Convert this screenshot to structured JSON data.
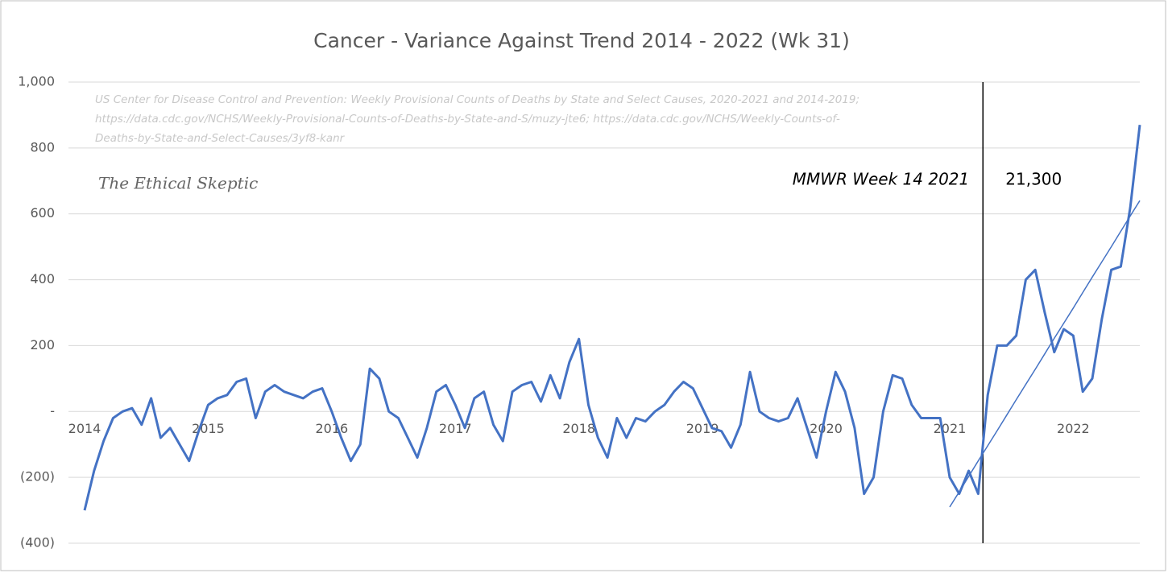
{
  "chart_data": {
    "type": "line",
    "title": "Cancer  - Variance Against Trend  2014 - 2022 (Wk 31)",
    "source": [
      "US Center for Disease Control and Prevention: Weekly  Provisional Counts of Deaths by State and Select Causes, 2020-2021 and 2014-2019;",
      "https://data.cdc.gov/NCHS/Weekly-Provisional-Counts-of-Deaths-by-State-and-S/muzy-jte6;  https://data.cdc.gov/NCHS/Weekly-Counts-of-",
      "Deaths-by-State-and-Select-Causes/3yf8-kanr"
    ],
    "watermark": "The Ethical Skeptic",
    "annotations": [
      "MMWR Week 14  2021",
      "21,300"
    ],
    "categories": [
      "2014",
      null,
      null,
      null,
      null,
      null,
      null,
      null,
      null,
      null,
      null,
      null,
      null,
      "2015",
      null,
      null,
      null,
      null,
      null,
      null,
      null,
      null,
      null,
      null,
      null,
      null,
      "2016",
      null,
      null,
      null,
      null,
      null,
      null,
      null,
      null,
      null,
      null,
      null,
      null,
      "2017",
      null,
      null,
      null,
      null,
      null,
      null,
      null,
      null,
      null,
      null,
      null,
      null,
      "2018",
      null,
      null,
      null,
      null,
      null,
      null,
      null,
      null,
      null,
      null,
      null,
      null,
      "2019",
      null,
      null,
      null,
      null,
      null,
      null,
      null,
      null,
      null,
      null,
      null,
      null,
      "2020",
      null,
      null,
      null,
      null,
      null,
      null,
      null,
      null,
      null,
      null,
      null,
      null,
      "2021",
      null,
      null,
      null,
      null,
      null,
      null,
      null,
      null,
      null,
      null,
      null,
      null,
      "2022",
      null,
      null,
      null,
      null,
      null,
      null,
      null
    ],
    "series": [
      {
        "color": "#4472c4",
        "values": [
          -300,
          -180,
          -90,
          -20,
          0,
          10,
          -40,
          40,
          -80,
          -50,
          -100,
          -150,
          -60,
          20,
          40,
          50,
          90,
          100,
          -20,
          60,
          80,
          60,
          50,
          40,
          60,
          70,
          0,
          -80,
          -150,
          -100,
          130,
          100,
          0,
          -20,
          -80,
          -140,
          -50,
          60,
          80,
          20,
          -50,
          40,
          60,
          -40,
          -90,
          60,
          80,
          90,
          30,
          110,
          40,
          150,
          220,
          20,
          -80,
          -140,
          -20,
          -80,
          -20,
          -30,
          0,
          20,
          60,
          90,
          70,
          10,
          -50,
          -60,
          -110,
          -40,
          120,
          0,
          -20,
          -30,
          -20,
          40,
          -50,
          -140,
          0,
          120,
          60,
          -50,
          -250,
          -200,
          0,
          110,
          100,
          20,
          -20,
          -20,
          -20,
          -200,
          -250,
          -180,
          -250,
          50,
          200,
          200,
          230,
          400,
          430,
          300,
          180,
          250,
          230,
          60,
          100,
          280,
          430,
          440,
          620,
          870
        ]
      },
      {
        "color": "#4472c4",
        "values": [
          null,
          null,
          null,
          null,
          null,
          null,
          null,
          null,
          null,
          null,
          null,
          null,
          null,
          null,
          null,
          null,
          null,
          null,
          null,
          null,
          null,
          null,
          null,
          null,
          null,
          null,
          null,
          null,
          null,
          null,
          null,
          null,
          null,
          null,
          null,
          null,
          null,
          null,
          null,
          null,
          null,
          null,
          null,
          null,
          null,
          null,
          null,
          null,
          null,
          null,
          null,
          null,
          null,
          null,
          null,
          null,
          null,
          null,
          null,
          null,
          null,
          null,
          null,
          null,
          null,
          null,
          null,
          null,
          null,
          null,
          null,
          null,
          null,
          null,
          null,
          null,
          null,
          null,
          null,
          null,
          null,
          null,
          null,
          null,
          null,
          null,
          null,
          null,
          null,
          null,
          null,
          -290,
          -244,
          -197,
          -150,
          -104,
          -58,
          -11,
          36,
          82,
          128,
          175,
          222,
          268,
          314,
          361,
          408,
          454,
          500,
          547,
          594,
          640
        ]
      }
    ],
    "ylim": [
      -400,
      1000
    ],
    "yticks": [
      {
        "value": -400,
        "label": "(400)"
      },
      {
        "value": -200,
        "label": "(200)"
      },
      {
        "value": 0,
        "label": "-"
      },
      200,
      400,
      600,
      800,
      {
        "value": 1000,
        "label": "1,000"
      }
    ],
    "grid": true
  }
}
